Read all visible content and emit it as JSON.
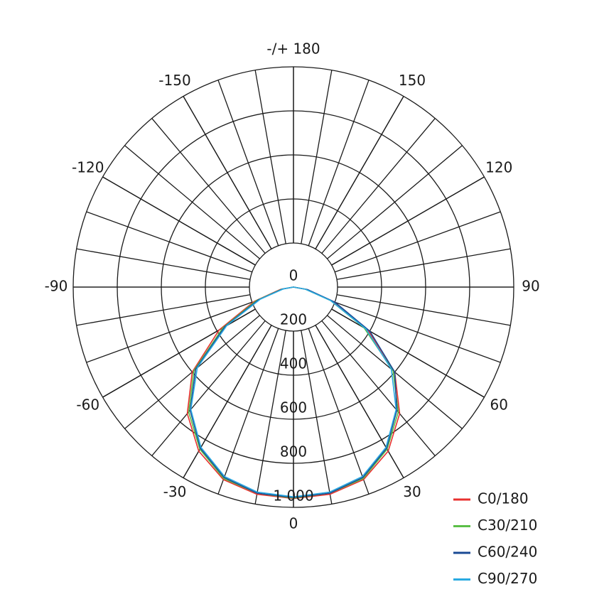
{
  "chart_data": {
    "type": "polar",
    "zero_direction": "down",
    "rlim": [
      0,
      1000
    ],
    "rticks": [
      0,
      200,
      400,
      600,
      800,
      {
        "value": 1000,
        "label": "1 000"
      }
    ],
    "aticks": [
      0,
      30,
      60,
      90,
      120,
      150,
      {
        "value": 180,
        "label": "-/+ 180"
      },
      -150,
      -120,
      -90,
      -60,
      -30
    ],
    "theta": [
      -90,
      -80,
      -70,
      -60,
      -50,
      -40,
      -30,
      -20,
      -10,
      0,
      10,
      20,
      30,
      40,
      50,
      60,
      70,
      80,
      90
    ],
    "series": [
      {
        "name": "C0/180",
        "color": "#e8312f",
        "values": [
          0,
          60,
          190,
          390,
          600,
          750,
          860,
          930,
          955,
          960,
          955,
          930,
          860,
          750,
          600,
          390,
          190,
          60,
          0
        ]
      },
      {
        "name": "C30/210",
        "color": "#5bbf47",
        "values": [
          0,
          55,
          180,
          370,
          590,
          740,
          850,
          925,
          950,
          958,
          950,
          925,
          850,
          740,
          590,
          370,
          180,
          55,
          0
        ]
      },
      {
        "name": "C60/240",
        "color": "#1a4a94",
        "values": [
          0,
          50,
          170,
          360,
          580,
          730,
          845,
          920,
          950,
          955,
          950,
          920,
          845,
          730,
          600,
          400,
          200,
          65,
          0
        ]
      },
      {
        "name": "C90/270",
        "color": "#29aae1",
        "values": [
          0,
          45,
          160,
          350,
          570,
          725,
          840,
          915,
          945,
          952,
          945,
          915,
          840,
          725,
          580,
          380,
          180,
          55,
          0
        ]
      }
    ]
  }
}
